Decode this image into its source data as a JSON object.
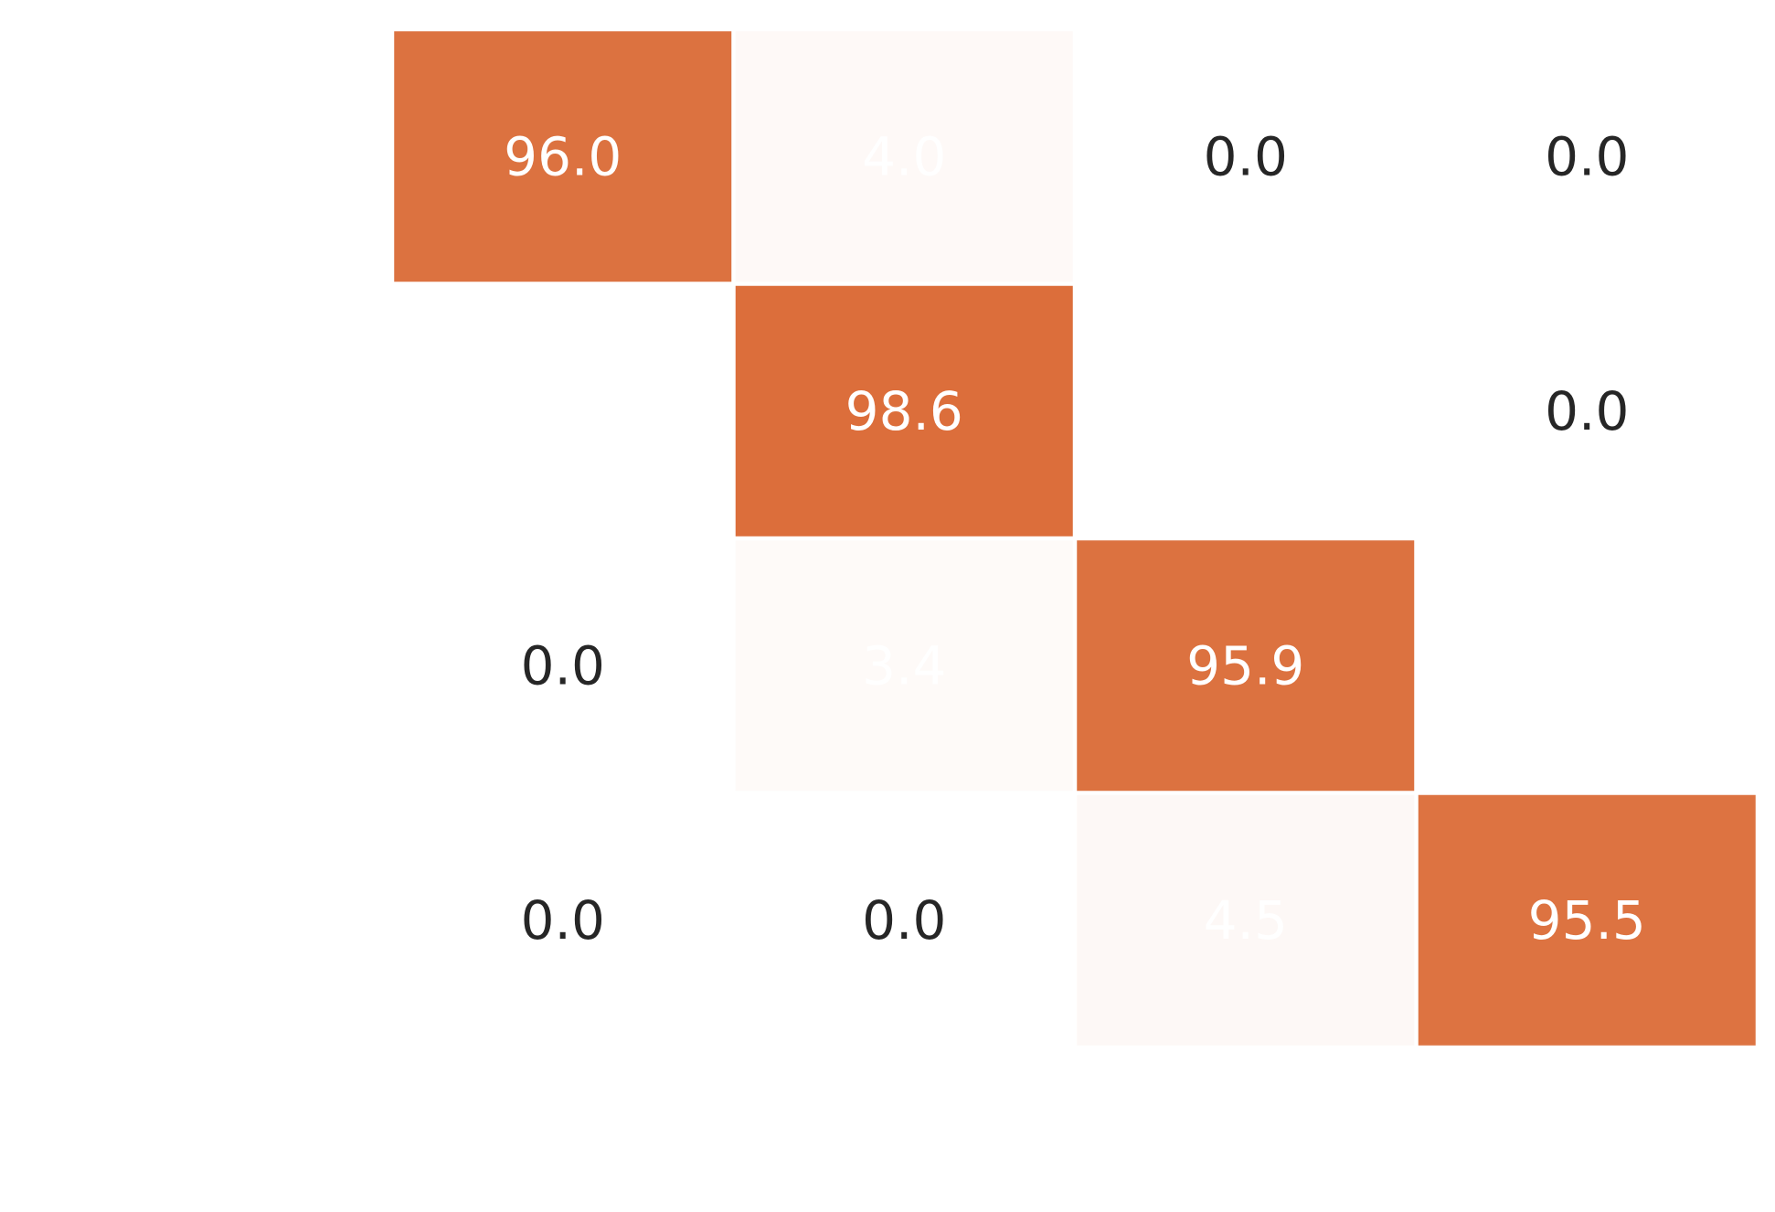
{
  "chart_data": {
    "type": "heatmap",
    "title": "",
    "xlabel": "",
    "ylabel": "",
    "row_labels": [],
    "col_labels": [],
    "values": [
      [
        96.0,
        4.0,
        0.0,
        0.0
      ],
      [
        0.0,
        98.6,
        0.0,
        0.0
      ],
      [
        0.0,
        3.4,
        95.9,
        0.0
      ],
      [
        0.0,
        0.0,
        4.5,
        95.5
      ]
    ],
    "value_labels": [
      [
        "96.0",
        "4.0",
        "0.0",
        "0.0"
      ],
      [
        "",
        "98.6",
        "",
        "0.0"
      ],
      [
        "0.0",
        "3.4",
        "95.9",
        ""
      ],
      [
        "0.0",
        "0.0",
        "4.5",
        "95.5"
      ]
    ],
    "value_range": [
      0,
      100
    ],
    "colors": {
      "high": "#db6c38",
      "low": "#ffffff",
      "text_on_dark": "#ffffff",
      "text_on_light": "#262626"
    },
    "grid": false,
    "legend": "none"
  }
}
